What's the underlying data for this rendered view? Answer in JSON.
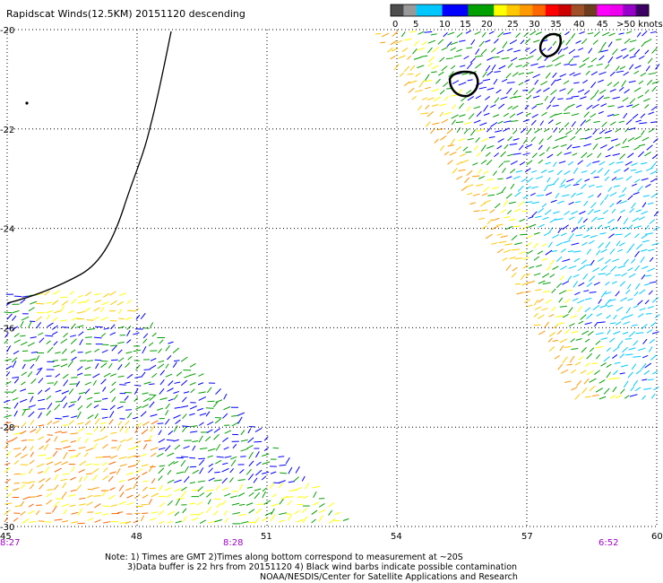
{
  "title": "Rapidscat Winds(12.5KM) 20151120 descending",
  "legend": {
    "colors": [
      "#4d4d4d",
      "#999999",
      "#00c8ff",
      "#00c8ff",
      "#0000ff",
      "#0000ff",
      "#00a000",
      "#00a000",
      "#ffff00",
      "#ffc800",
      "#ff9900",
      "#ff6600",
      "#ff0000",
      "#cc0000",
      "#a05028",
      "#6e3c1e",
      "#ff00ff",
      "#ee00ee",
      "#9600c8",
      "#3c0064"
    ],
    "labels": [
      "0",
      "5",
      "10",
      "15",
      "20",
      "25",
      "30",
      "35",
      "40",
      "45",
      ">50 knots"
    ]
  },
  "axes": {
    "lon_ticks": [
      "45",
      "48",
      "51",
      "54",
      "57",
      "60"
    ],
    "lat_ticks": [
      "-20",
      "-22",
      "-24",
      "-26",
      "-28",
      "-30"
    ],
    "times": [
      "8:27",
      "8:28",
      "6:52"
    ]
  },
  "notes": [
    "Note: 1) Times are GMT 2)Times along bottom correspond to measurement at ~20S",
    "3)Data buffer is 22 hrs from 20151120 4) Black wind barbs indicate possible contamination",
    "NOAA/NESDIS/Center for Satellite Applications and Research"
  ]
}
